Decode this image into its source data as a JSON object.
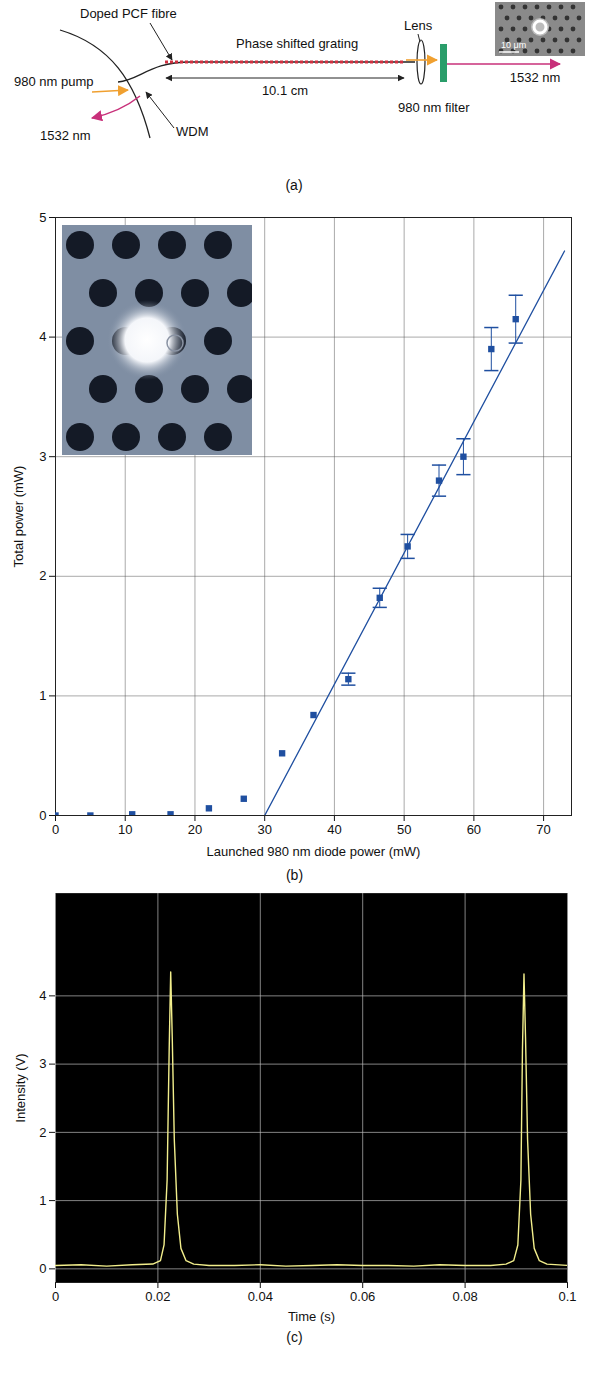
{
  "diagram": {
    "caption": "(a)",
    "texts": {
      "fibre": "Doped PCF fibre",
      "grating": "Phase shifted grating",
      "length": "10.1 cm",
      "lens": "Lens",
      "pump": "980 nm pump",
      "output_back": "1532 nm",
      "output_front": "1532 nm",
      "wdm": "WDM",
      "filter": "980 nm filter",
      "scale_bar": "10 μm"
    }
  },
  "chart_data": [
    {
      "type": "scatter",
      "caption": "(b)",
      "x_label": "Launched 980 nm diode power (mW)",
      "y_label": "Total power (mW)",
      "xlim": [
        0,
        74
      ],
      "xticks": [
        0,
        10,
        20,
        30,
        40,
        50,
        60,
        70
      ],
      "ylim": [
        0,
        5
      ],
      "yticks": [
        0,
        1,
        2,
        3,
        4,
        5
      ],
      "grid": true,
      "series": [
        {
          "type": "scatter",
          "color": "#1f4fa0",
          "marker": "square",
          "x": [
            0,
            5,
            11,
            16.5,
            22,
            27,
            32.5,
            37,
            42,
            46.5,
            50.5,
            55,
            58.5,
            62.5,
            66
          ],
          "values": [
            0,
            0,
            0.01,
            0.01,
            0.06,
            0.14,
            0.52,
            0.84,
            1.14,
            1.82,
            2.25,
            2.8,
            3.0,
            3.9,
            4.15
          ],
          "errors": [
            null,
            null,
            null,
            null,
            null,
            null,
            null,
            null,
            0.05,
            0.08,
            0.1,
            0.13,
            0.15,
            0.18,
            0.2
          ]
        },
        {
          "type": "line",
          "color": "#1f4fa0",
          "line_style": "solid",
          "x": [
            30,
            73
          ],
          "values": [
            0,
            4.72
          ]
        }
      ]
    },
    {
      "type": "line",
      "caption": "(c)",
      "x_label": "Time (s)",
      "y_label": "Intensity (V)",
      "xlim": [
        0,
        0.1
      ],
      "xticks": [
        0,
        0.02,
        0.04,
        0.06,
        0.08,
        0.1
      ],
      "ylim": [
        -0.2,
        5.5
      ],
      "yticks": [
        0,
        1,
        2,
        3,
        4
      ],
      "grid": true,
      "series": [
        {
          "color": "#f2ee8c",
          "x": [
            0,
            0.005,
            0.01,
            0.015,
            0.019,
            0.0205,
            0.0212,
            0.0218,
            0.0222,
            0.0225,
            0.0228,
            0.0232,
            0.0238,
            0.0245,
            0.0255,
            0.027,
            0.03,
            0.035,
            0.04,
            0.045,
            0.05,
            0.055,
            0.06,
            0.065,
            0.07,
            0.075,
            0.08,
            0.085,
            0.088,
            0.0895,
            0.0903,
            0.0909,
            0.0912,
            0.0915,
            0.0918,
            0.0922,
            0.0928,
            0.0935,
            0.0945,
            0.096,
            0.1
          ],
          "values": [
            0.05,
            0.06,
            0.04,
            0.06,
            0.07,
            0.12,
            0.35,
            1.3,
            3.2,
            4.35,
            3.4,
            1.9,
            0.8,
            0.3,
            0.12,
            0.07,
            0.05,
            0.05,
            0.06,
            0.04,
            0.05,
            0.06,
            0.05,
            0.05,
            0.04,
            0.06,
            0.05,
            0.05,
            0.07,
            0.12,
            0.35,
            1.3,
            3.2,
            4.32,
            3.4,
            1.9,
            0.8,
            0.3,
            0.12,
            0.07,
            0.05
          ]
        }
      ]
    }
  ]
}
